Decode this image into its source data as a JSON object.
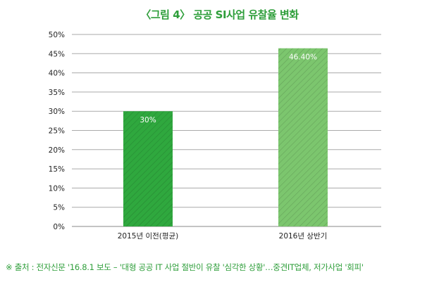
{
  "chart_data": {
    "type": "bar",
    "title": "〈그림 4〉 공공 SI사업 유찰율 변화",
    "categories": [
      "2015년 이전(평균)",
      "2016년 상반기"
    ],
    "values": [
      30,
      46.4
    ],
    "value_labels": [
      "30%",
      "46.40%"
    ],
    "bar_colors": [
      "#2fa83e",
      "#7cc66e"
    ],
    "yticks": [
      "0%",
      "5%",
      "10%",
      "15%",
      "20%",
      "25%",
      "30%",
      "35%",
      "40%",
      "45%",
      "50%"
    ],
    "ylim": [
      0,
      50
    ],
    "grid": true,
    "xlabel": "",
    "ylabel": ""
  },
  "source_note": "※ 출처 : 전자신문 '16.8.1 보도 – '대형 공공 IT 사업 절반이 유찰 '심각한 상황'…중견IT업체, 저가사업 '회피'"
}
